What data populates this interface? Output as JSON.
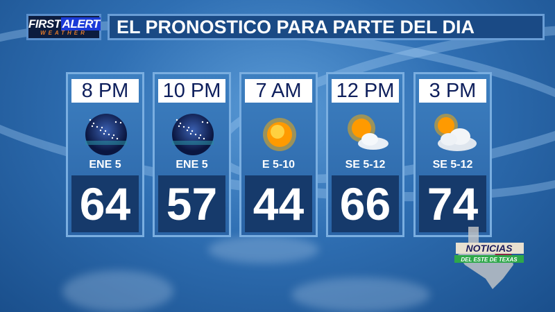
{
  "logo": {
    "line1a": "FIRST",
    "line1b": "ALERT",
    "line2": "WEATHER"
  },
  "title": "EL PRONOSTICO PARA PARTE DEL DIA",
  "periods": [
    {
      "time": "8 PM",
      "icon": "clear-night-icon",
      "wind": "ENE 5",
      "temp": "64"
    },
    {
      "time": "10 PM",
      "icon": "clear-night-icon",
      "wind": "ENE 5",
      "temp": "57"
    },
    {
      "time": "7 AM",
      "icon": "sunny-icon",
      "wind": "E 5-10",
      "temp": "44"
    },
    {
      "time": "12 PM",
      "icon": "partly-cloudy-icon",
      "wind": "SE 5-12",
      "temp": "66"
    },
    {
      "time": "3 PM",
      "icon": "mostly-cloudy-icon",
      "wind": "SE 5-12",
      "temp": "74"
    }
  ],
  "station_logo": {
    "line1": "NOTICIAS",
    "line2": "DEL ESTE DE TEXAS"
  },
  "colors": {
    "header_bg": "#1a4a85",
    "time_text": "#0e1f5c",
    "temp_bg": "#163a6b"
  }
}
